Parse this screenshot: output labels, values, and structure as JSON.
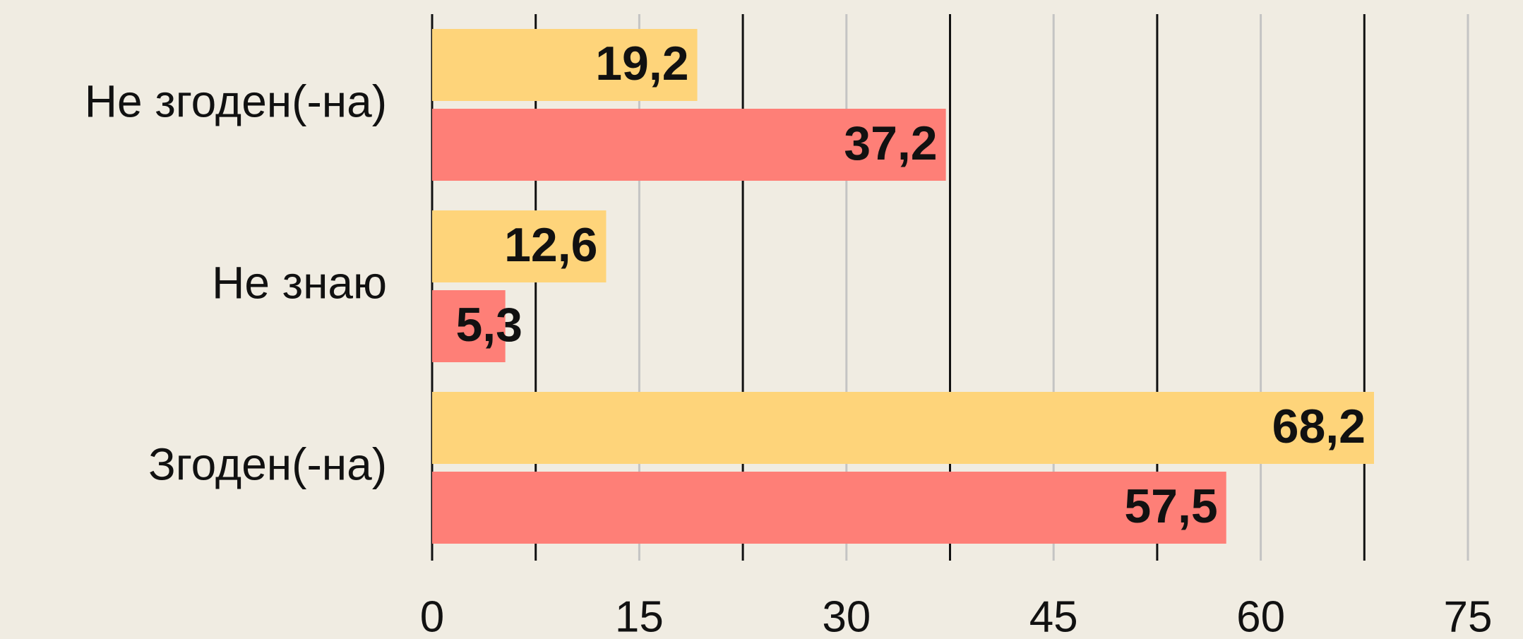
{
  "chart_data": {
    "type": "bar",
    "orientation": "horizontal",
    "categories": [
      "Не згоден(-на)",
      "Не знаю",
      "Згоден(-на)"
    ],
    "series": [
      {
        "color": "#fed47a",
        "values": [
          19.2,
          12.6,
          68.2
        ],
        "value_labels": [
          "19,2",
          "12,6",
          "68,2"
        ]
      },
      {
        "color": "#fe7f77",
        "values": [
          37.2,
          5.3,
          57.5
        ],
        "value_labels": [
          "37,2",
          "5,3",
          "57,5"
        ]
      }
    ],
    "xlim": [
      0,
      75
    ],
    "xticks": [
      0,
      15,
      30,
      45,
      60,
      75
    ],
    "minor_xticks": [
      7.5,
      22.5,
      37.5,
      52.5,
      67.5
    ],
    "grid": true
  }
}
